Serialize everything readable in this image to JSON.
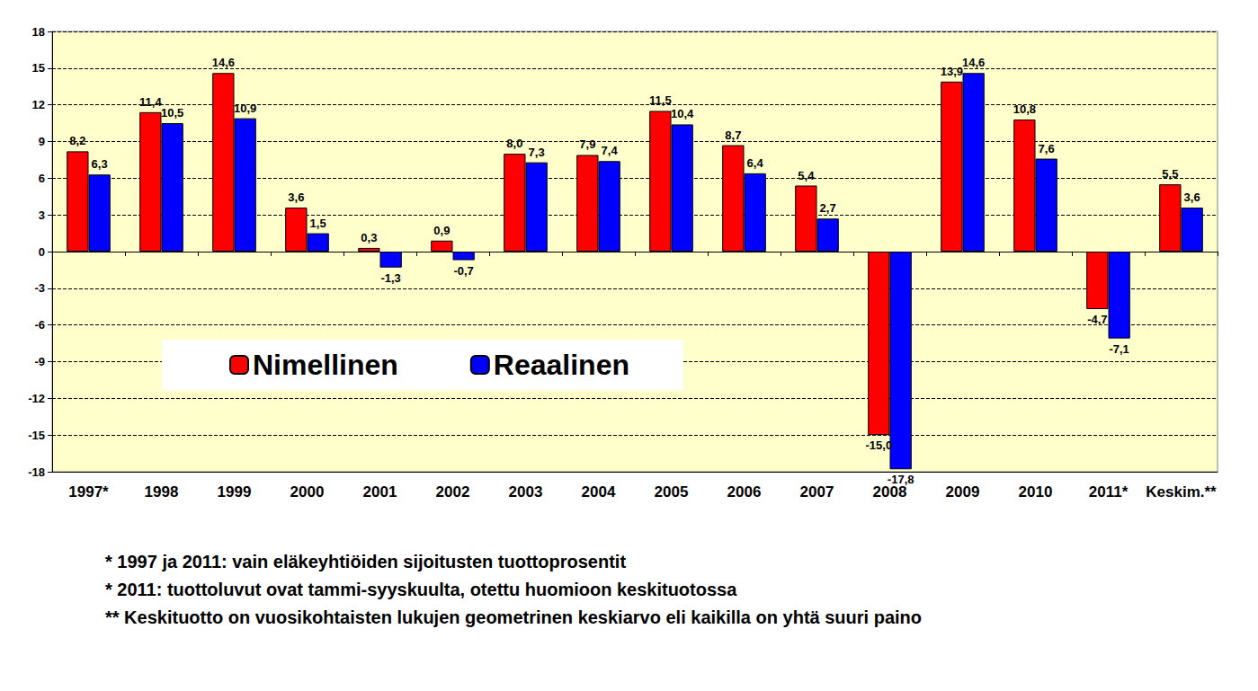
{
  "chart_data": {
    "type": "bar",
    "categories": [
      "1997*",
      "1998",
      "1999",
      "2000",
      "2001",
      "2002",
      "2003",
      "2004",
      "2005",
      "2006",
      "2007",
      "2008",
      "2009",
      "2010",
      "2011*",
      "Keskim.**"
    ],
    "series": [
      {
        "name": "Nimellinen",
        "color": "#ff0000",
        "values": [
          8.2,
          11.4,
          14.6,
          3.6,
          0.3,
          0.9,
          8.0,
          7.9,
          11.5,
          8.7,
          5.4,
          -15.0,
          13.9,
          10.8,
          -4.7,
          5.5
        ],
        "value_labels": [
          "8,2",
          "11,4",
          "14,6",
          "3,6",
          "0,3",
          "0,9",
          "8,0",
          "7,9",
          "11,5",
          "8,7",
          "5,4",
          "-15,0",
          "13,9",
          "10,8",
          "-4,7",
          "5,5"
        ]
      },
      {
        "name": "Reaalinen",
        "color": "#0000ff",
        "values": [
          6.3,
          10.5,
          10.9,
          1.5,
          -1.3,
          -0.7,
          7.3,
          7.4,
          10.4,
          6.4,
          2.7,
          -17.8,
          14.6,
          7.6,
          -7.1,
          3.6
        ],
        "value_labels": [
          "6,3",
          "10,5",
          "10,9",
          "1,5",
          "-1,3",
          "-0,7",
          "7,3",
          "7,4",
          "10,4",
          "6,4",
          "2,7",
          "-17,8",
          "14,6",
          "7,6",
          "-7,1",
          "3,6"
        ]
      }
    ],
    "ylim": [
      -18,
      18
    ],
    "yticks": [
      -18,
      -15,
      -12,
      -9,
      -6,
      -3,
      0,
      3,
      6,
      9,
      12,
      15,
      18
    ],
    "grid": true,
    "legend": "lower left",
    "data_labels": true,
    "annotations": [
      "* 1997 ja 2011: vain eläkeyhtiöiden sijoitusten tuottoprosentit",
      "* 2011: tuottoluvut ovat tammi-syyskuulta, otettu huomioon keskituotossa",
      "** Keskituotto on vuosikohtaisten lukujen geometrinen keskiarvo eli kaikilla on yhtä suuri paino"
    ]
  }
}
